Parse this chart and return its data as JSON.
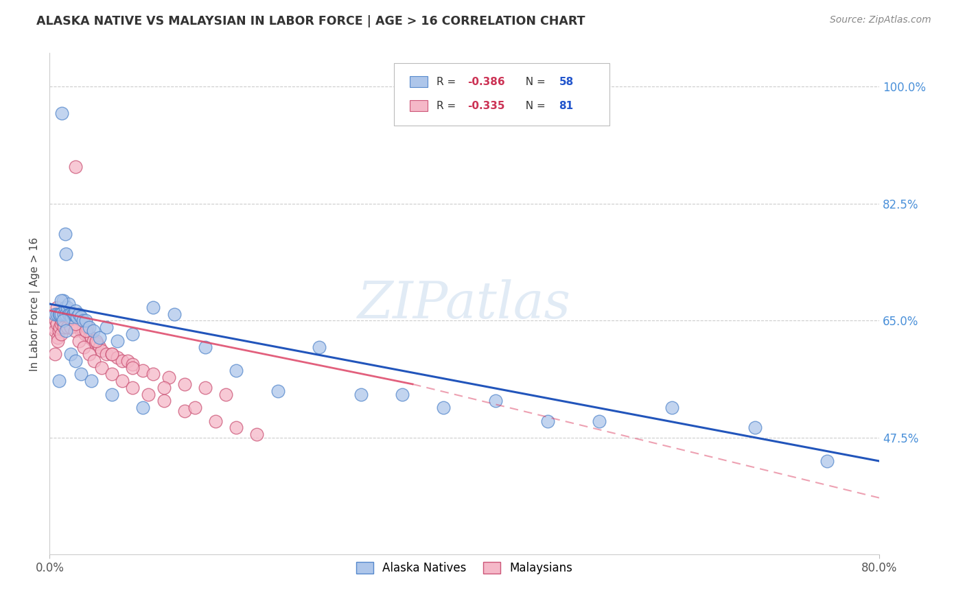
{
  "title": "ALASKA NATIVE VS MALAYSIAN IN LABOR FORCE | AGE > 16 CORRELATION CHART",
  "source": "Source: ZipAtlas.com",
  "ylabel": "In Labor Force | Age > 16",
  "ytick_labels": [
    "100.0%",
    "82.5%",
    "65.0%",
    "47.5%"
  ],
  "ytick_values": [
    1.0,
    0.825,
    0.65,
    0.475
  ],
  "xmin": 0.0,
  "xmax": 0.8,
  "ymin": 0.3,
  "ymax": 1.05,
  "alaska_R": -0.386,
  "alaska_N": 58,
  "malaysian_R": -0.335,
  "malaysian_N": 81,
  "alaska_color": "#aec6ea",
  "alaska_edge_color": "#5588cc",
  "alaska_line_color": "#2255bb",
  "malaysian_color": "#f5b8c8",
  "malaysian_edge_color": "#cc5577",
  "malaysian_line_color": "#dd4466",
  "watermark": "ZIPatlas",
  "alaska_x": [
    0.005,
    0.007,
    0.009,
    0.01,
    0.011,
    0.012,
    0.013,
    0.014,
    0.015,
    0.015,
    0.016,
    0.016,
    0.017,
    0.018,
    0.018,
    0.019,
    0.02,
    0.021,
    0.022,
    0.023,
    0.024,
    0.025,
    0.026,
    0.028,
    0.03,
    0.032,
    0.035,
    0.038,
    0.042,
    0.048,
    0.055,
    0.065,
    0.08,
    0.1,
    0.12,
    0.15,
    0.18,
    0.22,
    0.26,
    0.3,
    0.34,
    0.38,
    0.43,
    0.48,
    0.53,
    0.6,
    0.68,
    0.75,
    0.009,
    0.011,
    0.013,
    0.016,
    0.02,
    0.025,
    0.03,
    0.04,
    0.06,
    0.09
  ],
  "alaska_y": [
    0.66,
    0.66,
    0.66,
    0.66,
    0.66,
    0.96,
    0.68,
    0.66,
    0.78,
    0.67,
    0.75,
    0.66,
    0.67,
    0.66,
    0.675,
    0.66,
    0.66,
    0.655,
    0.66,
    0.66,
    0.66,
    0.665,
    0.655,
    0.66,
    0.655,
    0.65,
    0.65,
    0.64,
    0.635,
    0.625,
    0.64,
    0.62,
    0.63,
    0.67,
    0.66,
    0.61,
    0.575,
    0.545,
    0.61,
    0.54,
    0.54,
    0.52,
    0.53,
    0.5,
    0.5,
    0.52,
    0.49,
    0.44,
    0.56,
    0.68,
    0.65,
    0.635,
    0.6,
    0.59,
    0.57,
    0.56,
    0.54,
    0.52
  ],
  "malaysian_x": [
    0.004,
    0.005,
    0.006,
    0.007,
    0.008,
    0.009,
    0.01,
    0.011,
    0.012,
    0.013,
    0.014,
    0.015,
    0.016,
    0.017,
    0.018,
    0.019,
    0.02,
    0.021,
    0.022,
    0.023,
    0.024,
    0.025,
    0.026,
    0.027,
    0.028,
    0.029,
    0.03,
    0.031,
    0.032,
    0.034,
    0.036,
    0.038,
    0.04,
    0.042,
    0.044,
    0.046,
    0.048,
    0.05,
    0.055,
    0.06,
    0.065,
    0.07,
    0.075,
    0.08,
    0.09,
    0.1,
    0.115,
    0.13,
    0.15,
    0.17,
    0.005,
    0.008,
    0.011,
    0.014,
    0.017,
    0.02,
    0.024,
    0.028,
    0.033,
    0.038,
    0.043,
    0.05,
    0.06,
    0.07,
    0.08,
    0.095,
    0.11,
    0.13,
    0.16,
    0.2,
    0.007,
    0.012,
    0.018,
    0.025,
    0.035,
    0.045,
    0.06,
    0.08,
    0.11,
    0.14,
    0.18
  ],
  "malaysian_y": [
    0.64,
    0.635,
    0.65,
    0.645,
    0.625,
    0.635,
    0.64,
    0.645,
    0.65,
    0.66,
    0.645,
    0.66,
    0.655,
    0.66,
    0.645,
    0.64,
    0.655,
    0.645,
    0.66,
    0.65,
    0.66,
    0.88,
    0.65,
    0.65,
    0.64,
    0.645,
    0.635,
    0.64,
    0.635,
    0.63,
    0.64,
    0.625,
    0.625,
    0.62,
    0.615,
    0.615,
    0.61,
    0.605,
    0.6,
    0.6,
    0.595,
    0.59,
    0.59,
    0.585,
    0.575,
    0.57,
    0.565,
    0.555,
    0.55,
    0.54,
    0.6,
    0.62,
    0.63,
    0.64,
    0.64,
    0.64,
    0.635,
    0.62,
    0.61,
    0.6,
    0.59,
    0.58,
    0.57,
    0.56,
    0.55,
    0.54,
    0.53,
    0.515,
    0.5,
    0.48,
    0.67,
    0.66,
    0.655,
    0.645,
    0.635,
    0.62,
    0.6,
    0.58,
    0.55,
    0.52,
    0.49
  ],
  "alaska_line_x": [
    0.0,
    0.8
  ],
  "alaska_line_y": [
    0.675,
    0.44
  ],
  "malaysian_line_x": [
    0.0,
    0.35
  ],
  "malaysian_line_y": [
    0.665,
    0.555
  ]
}
